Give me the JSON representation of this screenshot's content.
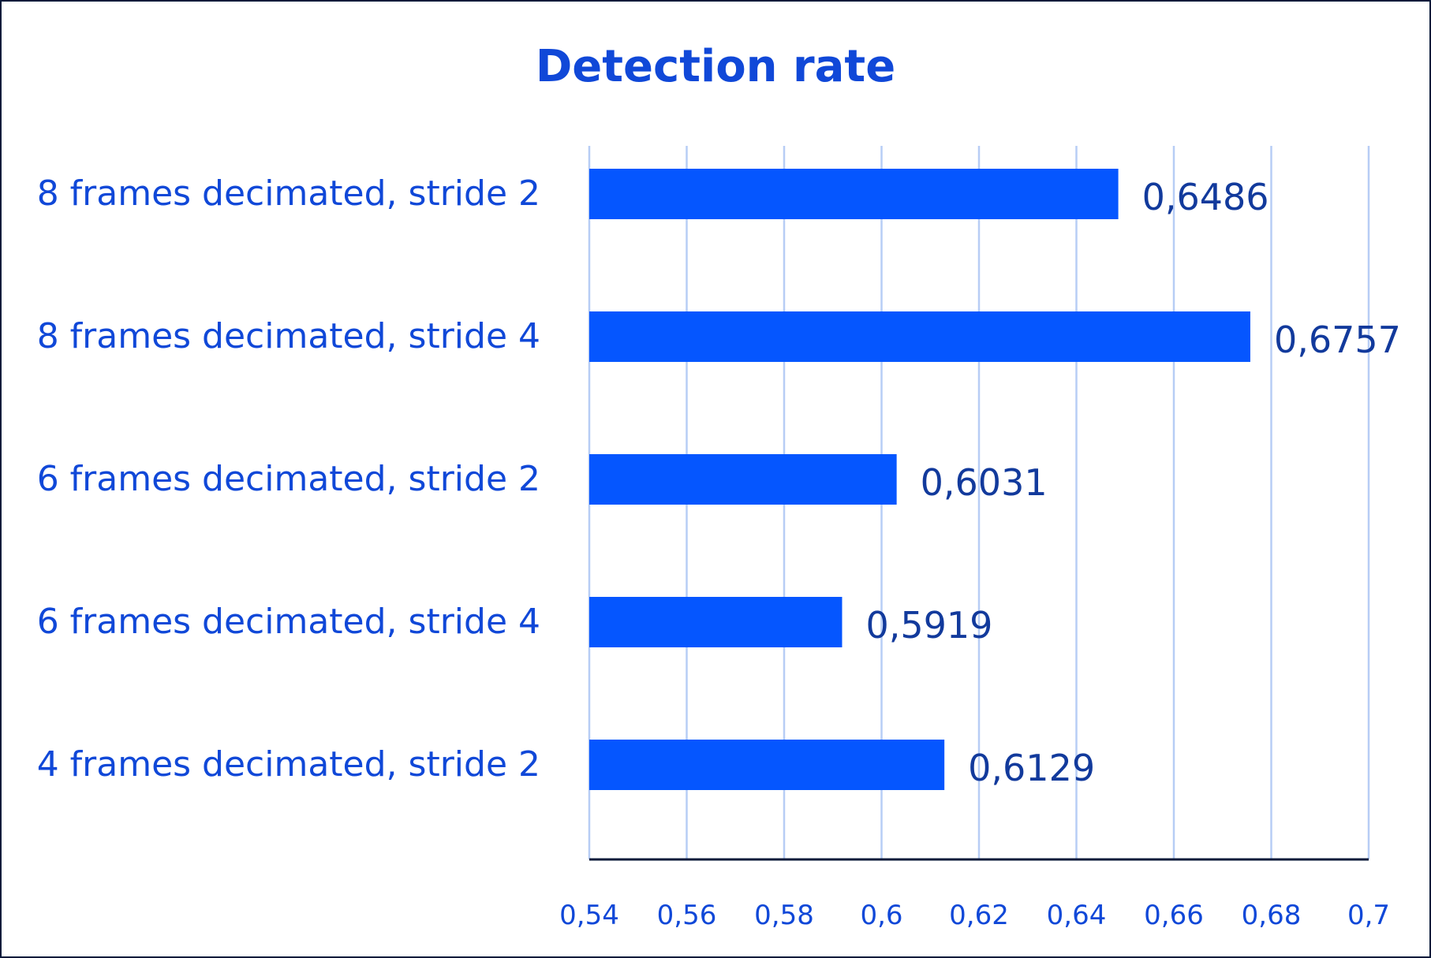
{
  "chart_data": {
    "type": "bar",
    "orientation": "horizontal",
    "title": "Detection rate",
    "categories": [
      "8 frames decimated, stride 2",
      "8 frames decimated, stride 4",
      "6 frames decimated, stride 2",
      "6 frames decimated, stride 4",
      "4 frames decimated, stride 2"
    ],
    "values": [
      0.6486,
      0.6757,
      0.6031,
      0.5919,
      0.6129
    ],
    "value_labels": [
      "0,6486",
      "0,6757",
      "0,6031",
      "0,5919",
      "0,6129"
    ],
    "xlim": [
      0.54,
      0.7
    ],
    "x_ticks": [
      0.54,
      0.56,
      0.58,
      0.6,
      0.62,
      0.64,
      0.66,
      0.68,
      0.7
    ],
    "x_tick_labels": [
      "0,54",
      "0,56",
      "0,58",
      "0,6",
      "0,62",
      "0,64",
      "0,66",
      "0,68",
      "0,7"
    ],
    "xlabel": "",
    "ylabel": "",
    "grid": "vertical",
    "legend": "none",
    "colors": {
      "bar": "#0556ff",
      "grid": "#b7cdf5",
      "axis": "#0a1a3a",
      "text": "#1048d8",
      "value_text": "#123a9c"
    }
  }
}
